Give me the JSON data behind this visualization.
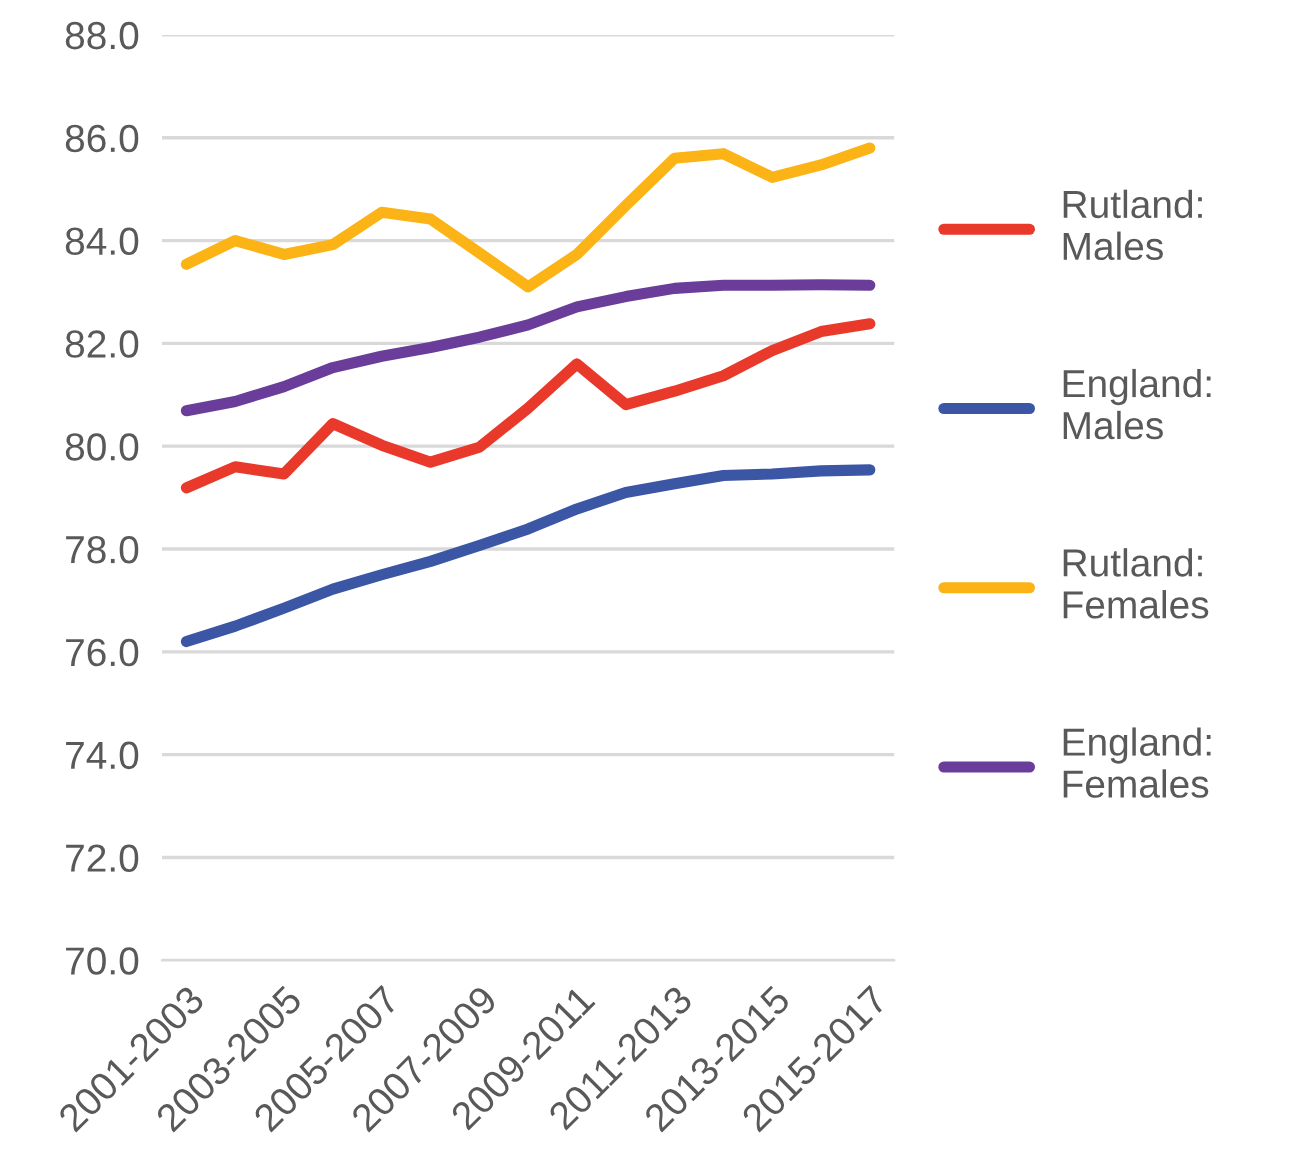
{
  "chart_data": {
    "type": "line",
    "categories": [
      "2001-2003",
      null,
      "2003-2005",
      null,
      "2005-2007",
      null,
      "2007-2009",
      null,
      "2009-2011",
      null,
      "2011-2013",
      null,
      "2013-2015",
      null,
      "2015-2017"
    ],
    "series": [
      {
        "name": "Rutland:\nMales",
        "color": "#e8392a",
        "values": [
          79.19,
          79.6,
          79.46,
          80.44,
          80.02,
          79.69,
          79.98,
          80.74,
          81.6,
          80.81,
          81.07,
          81.37,
          81.86,
          82.23,
          82.38
        ]
      },
      {
        "name": "England:\nMales",
        "color": "#3c56a6",
        "values": [
          76.2,
          76.5,
          76.85,
          77.22,
          77.5,
          77.76,
          78.07,
          78.39,
          78.78,
          79.1,
          79.27,
          79.43,
          79.46,
          79.52,
          79.54
        ]
      },
      {
        "name": "Rutland:\nFemales",
        "color": "#fbb316",
        "values": [
          83.54,
          84.0,
          83.73,
          83.92,
          84.55,
          84.42,
          83.76,
          83.1,
          83.73,
          84.68,
          85.6,
          85.69,
          85.23,
          85.47,
          85.8
        ]
      },
      {
        "name": "England:\nFemales",
        "color": "#6a3d9a",
        "values": [
          80.69,
          80.87,
          81.16,
          81.53,
          81.75,
          81.92,
          82.12,
          82.36,
          82.71,
          82.91,
          83.07,
          83.13,
          83.13,
          83.14,
          83.13
        ]
      }
    ],
    "ylim": [
      70,
      88
    ],
    "yticks": [
      {
        "value": 70,
        "label": "70.0"
      },
      {
        "value": 72,
        "label": "72.0"
      },
      {
        "value": 74,
        "label": "74.0"
      },
      {
        "value": 76,
        "label": "76.0"
      },
      {
        "value": 78,
        "label": "78.0"
      },
      {
        "value": 80,
        "label": "80.0"
      },
      {
        "value": 82,
        "label": "82.0"
      },
      {
        "value": 84,
        "label": "84.0"
      },
      {
        "value": 86,
        "label": "86.0"
      },
      {
        "value": 88,
        "label": "88.0"
      }
    ],
    "grid": "y",
    "legend": "right",
    "marker": "none",
    "line_style": "solid"
  }
}
